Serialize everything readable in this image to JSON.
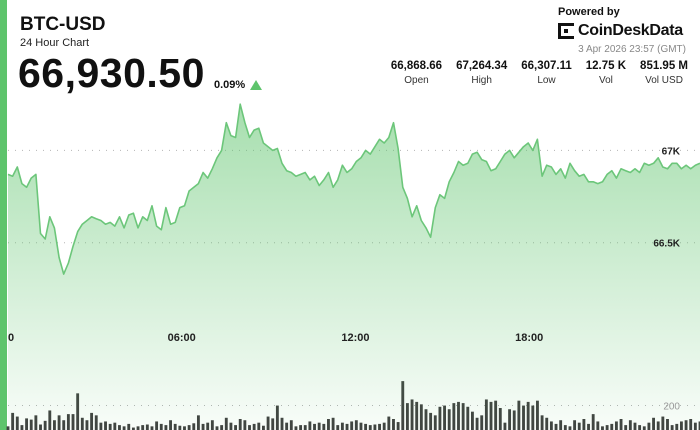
{
  "header": {
    "symbol": "BTC-USD",
    "subtitle": "24 Hour Chart",
    "price": "66,930.50",
    "change_pct": "0.09%",
    "direction": "up"
  },
  "branding": {
    "powered_by": "Powered by",
    "brand": "CoinDeskData",
    "timestamp": "3 Apr 2026 23:57 (GMT)"
  },
  "stats": [
    {
      "value": "66,868.66",
      "label": "Open"
    },
    {
      "value": "67,264.34",
      "label": "High"
    },
    {
      "value": "66,307.11",
      "label": "Low"
    },
    {
      "value": "12.75 K",
      "label": "Vol"
    },
    {
      "value": "851.95 M",
      "label": "Vol USD"
    }
  ],
  "colors": {
    "accent": "#5ec46c",
    "line": "#6cc67a",
    "volume": "#3f3f3f"
  },
  "chart_data": {
    "type": "line",
    "x_ticks": [
      "0",
      "06:00",
      "12:00",
      "18:00"
    ],
    "x_tick_hours": [
      0,
      6,
      12,
      18
    ],
    "price_ticks": [
      {
        "label": "67K",
        "value": 67000
      },
      {
        "label": "66.5K",
        "value": 66500
      }
    ],
    "price_range": [
      66000,
      67300
    ],
    "volume_ticks": [
      {
        "label": "200",
        "value": 200
      }
    ],
    "volume_range": [
      0,
      900
    ],
    "hours_span": 23.9,
    "price": [
      66870,
      66860,
      66910,
      66820,
      66800,
      66850,
      66870,
      66550,
      66520,
      66640,
      66580,
      66420,
      66330,
      66390,
      66480,
      66560,
      66600,
      66620,
      66640,
      66630,
      66620,
      66600,
      66610,
      66590,
      66640,
      66580,
      66650,
      66660,
      66580,
      66640,
      66620,
      66700,
      66590,
      66570,
      66690,
      66600,
      66610,
      66690,
      66700,
      66780,
      66800,
      66820,
      66880,
      66850,
      66900,
      66960,
      67000,
      67150,
      67080,
      67070,
      67250,
      67150,
      67070,
      67110,
      67120,
      67040,
      67020,
      67000,
      67010,
      66930,
      66890,
      66880,
      66860,
      66870,
      66880,
      66840,
      66860,
      66810,
      66840,
      66880,
      66800,
      66840,
      66920,
      66880,
      66900,
      66940,
      66960,
      67000,
      66980,
      67020,
      67060,
      67040,
      67070,
      67150,
      67010,
      66800,
      66740,
      66640,
      66700,
      66620,
      66580,
      66530,
      66690,
      66760,
      66740,
      66830,
      66880,
      66940,
      66920,
      66930,
      66980,
      66990,
      66950,
      66940,
      66890,
      66900,
      66940,
      66980,
      67000,
      66960,
      66990,
      67020,
      67040,
      67000,
      67060,
      66860,
      66920,
      66910,
      66870,
      66900,
      66850,
      66930,
      66890,
      66860,
      66870,
      66830,
      66830,
      66820,
      66830,
      66870,
      66890,
      66850,
      66900,
      66890,
      66880,
      66900,
      66880,
      66930,
      66920,
      66930,
      66960,
      66910,
      66900,
      66930,
      66930,
      66900,
      66920,
      66900,
      66920,
      66930
    ],
    "volume": [
      30,
      140,
      110,
      40,
      95,
      85,
      120,
      45,
      75,
      160,
      80,
      120,
      80,
      130,
      130,
      300,
      100,
      80,
      140,
      120,
      60,
      70,
      50,
      60,
      40,
      30,
      50,
      20,
      30,
      40,
      45,
      30,
      70,
      50,
      40,
      80,
      50,
      35,
      30,
      40,
      55,
      120,
      50,
      60,
      80,
      30,
      40,
      100,
      60,
      40,
      90,
      80,
      40,
      50,
      60,
      35,
      110,
      95,
      200,
      100,
      60,
      80,
      30,
      40,
      40,
      70,
      50,
      60,
      50,
      90,
      100,
      40,
      60,
      50,
      70,
      80,
      60,
      50,
      40,
      45,
      50,
      60,
      110,
      90,
      65,
      400,
      220,
      250,
      230,
      210,
      170,
      140,
      120,
      190,
      200,
      170,
      220,
      230,
      220,
      190,
      150,
      100,
      120,
      250,
      230,
      240,
      180,
      60,
      170,
      160,
      240,
      200,
      230,
      200,
      240,
      120,
      100,
      70,
      50,
      80,
      40,
      30,
      80,
      60,
      90,
      50,
      130,
      70,
      30,
      40,
      50,
      70,
      90,
      40,
      80,
      60,
      40,
      30,
      60,
      100,
      70,
      110,
      90,
      40,
      50,
      70,
      80,
      90,
      60,
      70
    ]
  }
}
